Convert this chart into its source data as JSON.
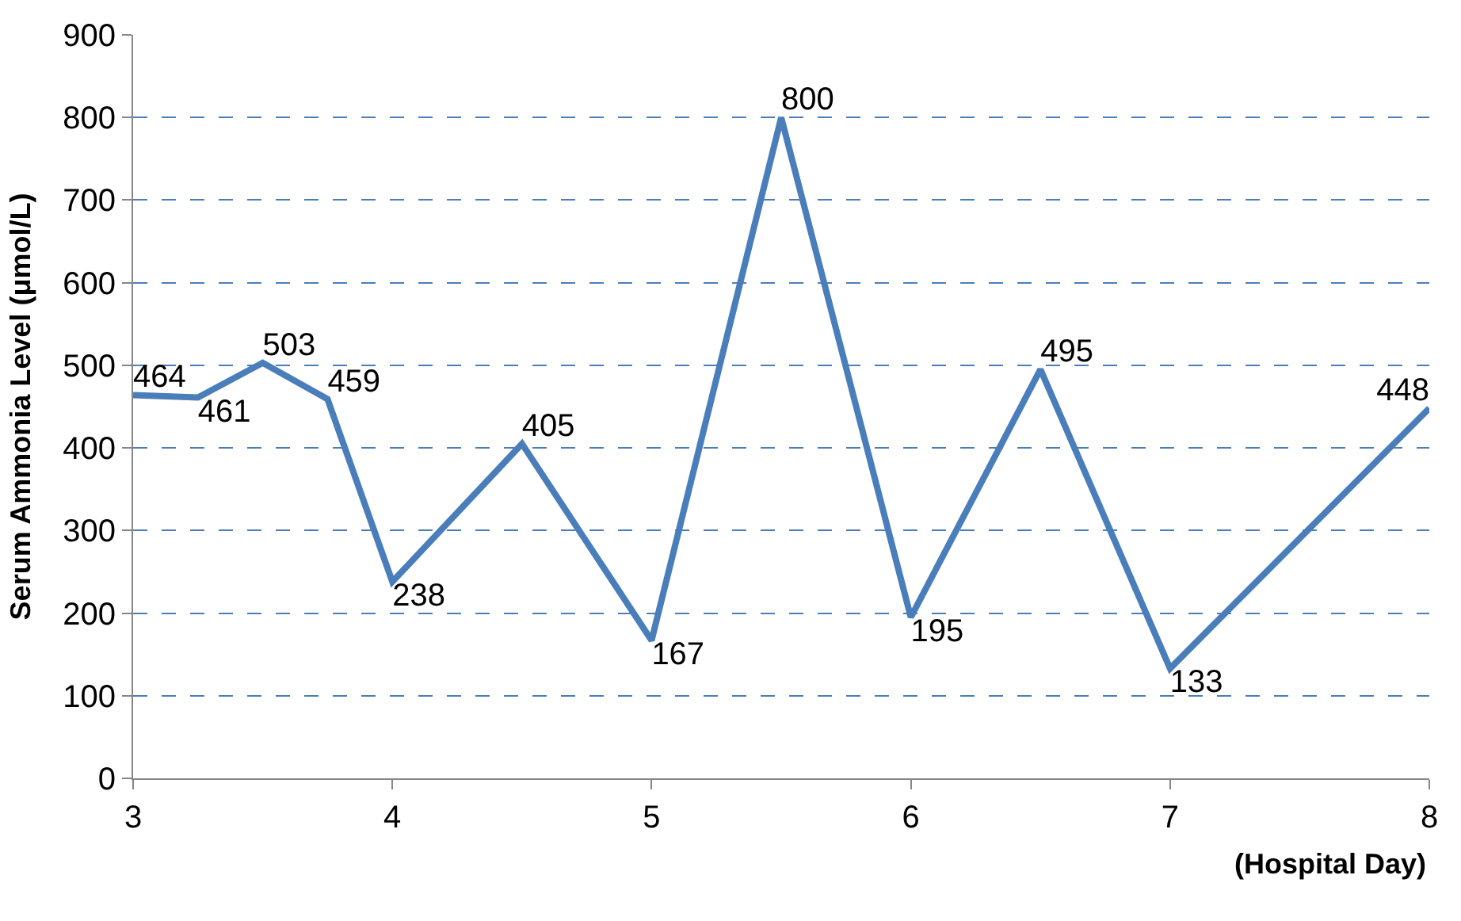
{
  "chart_data": {
    "type": "line",
    "xlabel": "(Hospital Day)",
    "ylabel": "Serum Ammonia Level (μmol/L)",
    "x": [
      3,
      3.25,
      3.5,
      3.75,
      4,
      4.5,
      5,
      5.5,
      6,
      6.5,
      7,
      8
    ],
    "series": [
      {
        "color": "#4a7ebb",
        "values": [
          464,
          461,
          503,
          459,
          238,
          405,
          167,
          800,
          195,
          495,
          133,
          448
        ]
      }
    ],
    "xlim": [
      3,
      8
    ],
    "xticks": [
      3,
      4,
      5,
      6,
      7,
      8
    ],
    "ylim": [
      0,
      900
    ],
    "yticks": [
      0,
      100,
      200,
      300,
      400,
      500,
      600,
      700,
      800,
      900
    ],
    "grid": "y",
    "data_labels": true,
    "marker": "none",
    "line_style": "solid",
    "legend": false
  }
}
